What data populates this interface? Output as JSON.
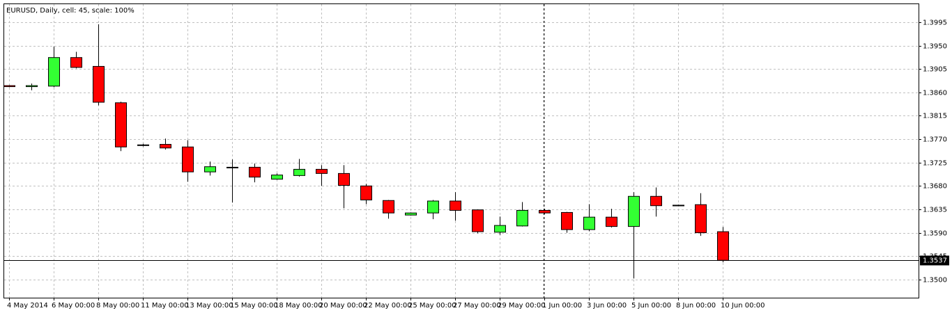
{
  "chart_data": {
    "type": "candlestick",
    "title": "EURUSD, Daily, cell: 45, scale: 100%",
    "categories": [
      "4 May 2014",
      null,
      "6 May 00:00",
      null,
      "8 May 00:00",
      null,
      "11 May 00:00",
      null,
      "13 May 00:00",
      null,
      "15 May 00:00",
      null,
      "18 May 00:00",
      null,
      "20 May 00:00",
      null,
      "22 May 00:00",
      null,
      "25 May 00:00",
      null,
      "27 May 00:00",
      null,
      "29 May 00:00",
      null,
      "1 Jun 00:00",
      null,
      "3 Jun 00:00",
      null,
      "5 Jun 00:00",
      null,
      "8 Jun 00:00",
      null,
      "10 Jun 00:00"
    ],
    "open": [
      1.3873,
      1.3871,
      1.3872,
      1.3927,
      1.391,
      1.384,
      1.3758,
      1.376,
      1.3755,
      1.3707,
      1.3716,
      1.3716,
      1.3693,
      1.37,
      1.3712,
      1.3704,
      1.368,
      1.3652,
      1.3624,
      1.3628,
      1.3651,
      1.3634,
      1.3591,
      1.3603,
      1.3633,
      1.3629,
      1.3596,
      1.362,
      1.3602,
      1.366,
      1.3643,
      1.3644,
      1.3592
    ],
    "high": [
      1.3874,
      1.3877,
      1.3948,
      1.3938,
      1.3991,
      1.3842,
      1.3761,
      1.3771,
      1.3768,
      1.3727,
      1.3731,
      1.3723,
      1.3704,
      1.3732,
      1.372,
      1.372,
      1.3684,
      1.3653,
      1.3629,
      1.3653,
      1.3668,
      1.3635,
      1.3621,
      1.3649,
      1.3636,
      1.363,
      1.3645,
      1.3636,
      1.3668,
      1.3677,
      1.3644,
      1.3666,
      1.3601
    ],
    "low": [
      1.387,
      1.3864,
      1.387,
      1.3906,
      1.3835,
      1.3747,
      1.3756,
      1.375,
      1.3688,
      1.37,
      1.3648,
      1.3687,
      1.3692,
      1.3698,
      1.368,
      1.3637,
      1.3645,
      1.3617,
      1.3623,
      1.3616,
      1.3613,
      1.3589,
      1.3586,
      1.3602,
      1.3626,
      1.359,
      1.3593,
      1.36,
      1.3502,
      1.3621,
      1.3641,
      1.3584,
      1.3533
    ],
    "close": [
      1.3871,
      1.3873,
      1.3927,
      1.3908,
      1.3841,
      1.3755,
      1.3759,
      1.3753,
      1.3707,
      1.3717,
      1.3715,
      1.3697,
      1.3701,
      1.3712,
      1.3704,
      1.3681,
      1.3653,
      1.3628,
      1.3628,
      1.3651,
      1.3633,
      1.3592,
      1.3604,
      1.3633,
      1.3628,
      1.3596,
      1.362,
      1.3602,
      1.366,
      1.3642,
      1.3642,
      1.359,
      1.3537
    ],
    "up_color": "#33ff33",
    "down_color": "#ff0000",
    "ylim": [
      1.3465,
      1.4031
    ],
    "yticks": [
      {
        "value": 1.35,
        "label": "1.3500"
      },
      1.3545,
      {
        "value": 1.359,
        "label": "1.3590"
      },
      1.3635,
      {
        "value": 1.368,
        "label": "1.3680"
      },
      1.3725,
      {
        "value": 1.377,
        "label": "1.3770"
      },
      1.3815,
      {
        "value": 1.386,
        "label": "1.3860"
      },
      1.3905,
      {
        "value": 1.395,
        "label": "1.3950"
      },
      1.3995
    ],
    "current_price": 1.3537,
    "grid": true
  }
}
